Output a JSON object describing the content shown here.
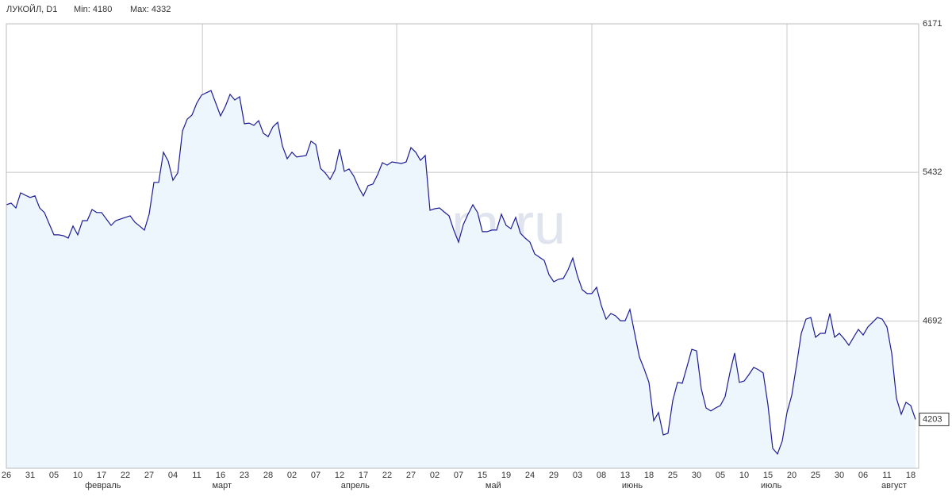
{
  "chart_data": {
    "type": "line",
    "title": "ЛУКОЙЛ, D1",
    "min_label": "Min: 4180",
    "max_label": "Max: 4332",
    "watermark": "finam.ru",
    "categories": [
      "26",
      null,
      null,
      null,
      null,
      "31",
      null,
      null,
      null,
      null,
      "05",
      null,
      null,
      null,
      null,
      "10",
      null,
      null,
      null,
      null,
      "17",
      null,
      null,
      null,
      null,
      "22",
      null,
      null,
      null,
      null,
      "27",
      null,
      null,
      null,
      null,
      "04",
      null,
      null,
      null,
      null,
      "11",
      null,
      null,
      null,
      null,
      "16",
      null,
      null,
      null,
      null,
      "23",
      null,
      null,
      null,
      null,
      "28",
      null,
      null,
      null,
      null,
      "02",
      null,
      null,
      null,
      null,
      "07",
      null,
      null,
      null,
      null,
      "12",
      null,
      null,
      null,
      null,
      "17",
      null,
      null,
      null,
      null,
      "22",
      null,
      null,
      null,
      null,
      "27",
      null,
      null,
      null,
      null,
      "02",
      null,
      null,
      null,
      null,
      "07",
      null,
      null,
      null,
      null,
      "15",
      null,
      null,
      null,
      null,
      "19",
      null,
      null,
      null,
      null,
      "24",
      null,
      null,
      null,
      null,
      "29",
      null,
      null,
      null,
      null,
      "03",
      null,
      null,
      null,
      null,
      "08",
      null,
      null,
      null,
      null,
      "13",
      null,
      null,
      null,
      null,
      "18",
      null,
      null,
      null,
      null,
      "25",
      null,
      null,
      null,
      null,
      "30",
      null,
      null,
      null,
      null,
      "05",
      null,
      null,
      null,
      null,
      "10",
      null,
      null,
      null,
      null,
      "15",
      null,
      null,
      null,
      null,
      "20",
      null,
      null,
      null,
      null,
      "25",
      null,
      null,
      null,
      null,
      "30",
      null,
      null,
      null,
      null,
      "06",
      null,
      null,
      null,
      null,
      "11",
      null,
      null,
      null,
      null,
      "18",
      null
    ],
    "month_labels": [
      {
        "value": 20.3,
        "label": "февраль"
      },
      {
        "value": 45.3,
        "label": "март"
      },
      {
        "value": 73.3,
        "label": "апрель"
      },
      {
        "value": 102.3,
        "label": "май"
      },
      {
        "value": 131.5,
        "label": "июнь"
      },
      {
        "value": 160.7,
        "label": "июль"
      },
      {
        "value": 186.5,
        "label": "август"
      }
    ],
    "xgrid": [
      41.2,
      82,
      123,
      164
    ],
    "series": [
      {
        "name": "ЛУКОЙЛ",
        "color": "#1c1c96",
        "fill": "#eef6fd",
        "values": [
          5271,
          5279,
          5255,
          5330,
          5318,
          5307,
          5315,
          5255,
          5232,
          5176,
          5121,
          5121,
          5117,
          5105,
          5165,
          5121,
          5192,
          5192,
          5247,
          5232,
          5232,
          5200,
          5168,
          5192,
          5200,
          5208,
          5216,
          5184,
          5165,
          5145,
          5224,
          5382,
          5382,
          5532,
          5488,
          5393,
          5429,
          5638,
          5697,
          5717,
          5776,
          5816,
          5828,
          5839,
          5776,
          5713,
          5760,
          5820,
          5792,
          5808,
          5674,
          5677,
          5666,
          5689,
          5626,
          5610,
          5658,
          5681,
          5563,
          5500,
          5532,
          5508,
          5512,
          5516,
          5587,
          5571,
          5452,
          5429,
          5397,
          5441,
          5547,
          5437,
          5449,
          5413,
          5358,
          5315,
          5366,
          5374,
          5421,
          5480,
          5468,
          5484,
          5480,
          5476,
          5484,
          5555,
          5532,
          5492,
          5516,
          5243,
          5251,
          5255,
          5235,
          5216,
          5145,
          5085,
          5172,
          5224,
          5271,
          5232,
          5137,
          5137,
          5145,
          5145,
          5224,
          5168,
          5152,
          5208,
          5129,
          5105,
          5085,
          5026,
          5010,
          4994,
          4923,
          4888,
          4900,
          4904,
          4947,
          5006,
          4915,
          4848,
          4829,
          4829,
          4860,
          4769,
          4702,
          4730,
          4718,
          4694,
          4694,
          4750,
          4631,
          4513,
          4454,
          4387,
          4197,
          4237,
          4126,
          4134,
          4296,
          4387,
          4383,
          4466,
          4552,
          4544,
          4355,
          4260,
          4245,
          4260,
          4272,
          4316,
          4434,
          4533,
          4387,
          4394,
          4426,
          4462,
          4450,
          4434,
          4276,
          4059,
          4031,
          4095,
          4237,
          4323,
          4473,
          4631,
          4702,
          4710,
          4612,
          4631,
          4631,
          4730,
          4612,
          4631,
          4604,
          4572,
          4612,
          4651,
          4623,
          4663,
          4686,
          4710,
          4702,
          4663,
          4533,
          4308,
          4229,
          4288,
          4272,
          4203
        ]
      }
    ],
    "ylim": [
      3960,
      6171
    ],
    "yticks": [
      4692,
      5432,
      6171
    ],
    "grid": true
  }
}
